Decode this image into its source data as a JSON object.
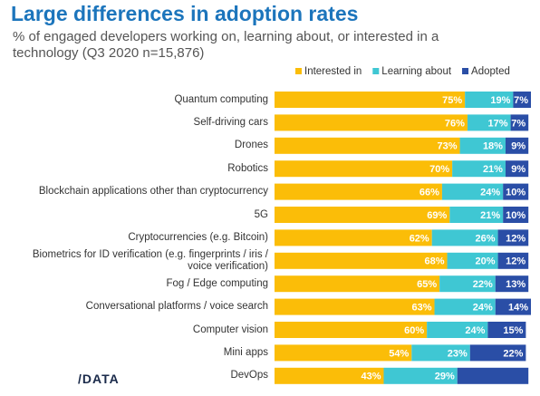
{
  "chart_data": {
    "type": "stacked_barh",
    "title": "Large differences in adoption rates",
    "subtitle": "% of engaged developers working on, learning about, or interested in a technology (Q3 2020 n=15,876)",
    "categories": [
      "Quantum computing",
      "Self-driving cars",
      "Drones",
      "Robotics",
      "Blockchain applications other than cryptocurrency",
      "5G",
      "Cryptocurrencies (e.g. Bitcoin)",
      "Biometrics for ID verification (e.g. fingerprints / iris / voice verification)",
      "Fog / Edge computing",
      "Conversational platforms / voice search",
      "Computer vision",
      "Mini apps",
      "DevOps"
    ],
    "series": [
      {
        "name": "Interested in",
        "color": "#fbbd08",
        "values": [
          75,
          76,
          73,
          70,
          66,
          69,
          62,
          68,
          65,
          63,
          60,
          54,
          43
        ],
        "value_labels": [
          "75%",
          "76%",
          "73%",
          "70%",
          "66%",
          "69%",
          "62%",
          "68%",
          "65%",
          "63%",
          "60%",
          "54%",
          "43%"
        ]
      },
      {
        "name": "Learning about",
        "color": "#3fc7d3",
        "values": [
          19,
          17,
          18,
          21,
          24,
          21,
          26,
          20,
          22,
          24,
          24,
          23,
          29
        ],
        "value_labels": [
          "19%",
          "17%",
          "18%",
          "21%",
          "24%",
          "21%",
          "26%",
          "20%",
          "22%",
          "24%",
          "24%",
          "23%",
          "29%"
        ]
      },
      {
        "name": "Adopted",
        "color": "#2a4ea6",
        "values": [
          7,
          7,
          9,
          9,
          10,
          10,
          12,
          12,
          13,
          14,
          15,
          22,
          28
        ],
        "value_labels": [
          "7%",
          "7%",
          "9%",
          "9%",
          "10%",
          "10%",
          "12%",
          "12%",
          "13%",
          "14%",
          "15%",
          "22%",
          null
        ]
      }
    ],
    "xlim": [
      0,
      101
    ],
    "legend": "top-right",
    "logo": "/DATA"
  }
}
